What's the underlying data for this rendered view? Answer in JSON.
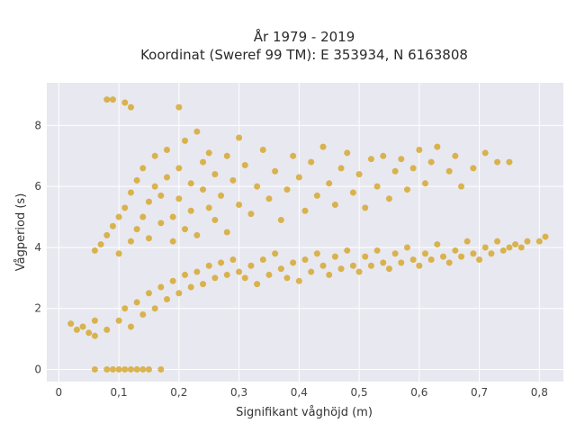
{
  "chart_data": {
    "type": "scatter",
    "title_lines": [
      "År 1979 - 2019",
      "Koordinat (Sweref 99 TM): E 353934, N 6163808"
    ],
    "xlabel": "Signifikant våghöjd (m)",
    "ylabel": "Vågperiod (s)",
    "xlim": [
      -0.02,
      0.84
    ],
    "ylim": [
      -0.4,
      9.4
    ],
    "xticks": [
      0,
      0.1,
      0.2,
      0.3,
      0.4,
      0.5,
      0.6,
      0.7,
      0.8
    ],
    "xtick_labels": [
      "0",
      "0,1",
      "0,2",
      "0,3",
      "0,4",
      "0,5",
      "0,6",
      "0,7",
      "0,8"
    ],
    "yticks": [
      0,
      2,
      4,
      6,
      8
    ],
    "ytick_labels": [
      "0",
      "2",
      "4",
      "6",
      "8"
    ],
    "grid": true,
    "legend": "none",
    "colors": {
      "marker": "#D4A017",
      "plot_background": "#E8E8F0",
      "grid": "#FFFFFF"
    },
    "series": [
      {
        "points": [
          [
            0.02,
            1.5
          ],
          [
            0.03,
            1.3
          ],
          [
            0.04,
            1.4
          ],
          [
            0.05,
            1.2
          ],
          [
            0.06,
            1.6
          ],
          [
            0.06,
            0.0
          ],
          [
            0.08,
            0.0
          ],
          [
            0.09,
            0.0
          ],
          [
            0.1,
            0.0
          ],
          [
            0.11,
            0.0
          ],
          [
            0.12,
            0.0
          ],
          [
            0.13,
            0.0
          ],
          [
            0.14,
            0.0
          ],
          [
            0.15,
            0.0
          ],
          [
            0.17,
            0.0
          ],
          [
            0.08,
            8.85
          ],
          [
            0.09,
            8.85
          ],
          [
            0.11,
            8.75
          ],
          [
            0.12,
            8.6
          ],
          [
            0.2,
            8.6
          ],
          [
            0.06,
            3.9
          ],
          [
            0.07,
            4.1
          ],
          [
            0.08,
            4.4
          ],
          [
            0.09,
            4.7
          ],
          [
            0.1,
            5.0
          ],
          [
            0.1,
            3.8
          ],
          [
            0.11,
            5.3
          ],
          [
            0.12,
            4.2
          ],
          [
            0.12,
            5.8
          ],
          [
            0.13,
            4.6
          ],
          [
            0.13,
            6.2
          ],
          [
            0.14,
            5.0
          ],
          [
            0.14,
            6.6
          ],
          [
            0.15,
            4.3
          ],
          [
            0.15,
            5.5
          ],
          [
            0.16,
            6.0
          ],
          [
            0.16,
            7.0
          ],
          [
            0.17,
            4.8
          ],
          [
            0.17,
            5.7
          ],
          [
            0.18,
            6.3
          ],
          [
            0.18,
            7.2
          ],
          [
            0.19,
            5.0
          ],
          [
            0.19,
            4.2
          ],
          [
            0.2,
            5.6
          ],
          [
            0.2,
            6.6
          ],
          [
            0.21,
            4.6
          ],
          [
            0.21,
            7.5
          ],
          [
            0.22,
            5.2
          ],
          [
            0.22,
            6.1
          ],
          [
            0.23,
            7.8
          ],
          [
            0.23,
            4.4
          ],
          [
            0.24,
            5.9
          ],
          [
            0.24,
            6.8
          ],
          [
            0.25,
            5.3
          ],
          [
            0.25,
            7.1
          ],
          [
            0.26,
            4.9
          ],
          [
            0.26,
            6.4
          ],
          [
            0.27,
            5.7
          ],
          [
            0.28,
            7.0
          ],
          [
            0.28,
            4.5
          ],
          [
            0.29,
            6.2
          ],
          [
            0.3,
            5.4
          ],
          [
            0.3,
            7.6
          ],
          [
            0.31,
            6.7
          ],
          [
            0.32,
            5.1
          ],
          [
            0.33,
            6.0
          ],
          [
            0.34,
            7.2
          ],
          [
            0.35,
            5.6
          ],
          [
            0.36,
            6.5
          ],
          [
            0.37,
            4.9
          ],
          [
            0.38,
            5.9
          ],
          [
            0.39,
            7.0
          ],
          [
            0.4,
            6.3
          ],
          [
            0.41,
            5.2
          ],
          [
            0.42,
            6.8
          ],
          [
            0.43,
            5.7
          ],
          [
            0.44,
            7.3
          ],
          [
            0.45,
            6.1
          ],
          [
            0.46,
            5.4
          ],
          [
            0.47,
            6.6
          ],
          [
            0.48,
            7.1
          ],
          [
            0.49,
            5.8
          ],
          [
            0.5,
            6.4
          ],
          [
            0.51,
            5.3
          ],
          [
            0.52,
            6.9
          ],
          [
            0.53,
            6.0
          ],
          [
            0.54,
            7.0
          ],
          [
            0.55,
            5.6
          ],
          [
            0.56,
            6.5
          ],
          [
            0.57,
            6.9
          ],
          [
            0.58,
            5.9
          ],
          [
            0.59,
            6.6
          ],
          [
            0.6,
            7.2
          ],
          [
            0.61,
            6.1
          ],
          [
            0.62,
            6.8
          ],
          [
            0.63,
            7.3
          ],
          [
            0.65,
            6.5
          ],
          [
            0.66,
            7.0
          ],
          [
            0.67,
            6.0
          ],
          [
            0.69,
            6.6
          ],
          [
            0.71,
            7.1
          ],
          [
            0.73,
            6.8
          ],
          [
            0.75,
            6.8
          ],
          [
            0.06,
            1.1
          ],
          [
            0.08,
            1.3
          ],
          [
            0.1,
            1.6
          ],
          [
            0.11,
            2.0
          ],
          [
            0.12,
            1.4
          ],
          [
            0.13,
            2.2
          ],
          [
            0.14,
            1.8
          ],
          [
            0.15,
            2.5
          ],
          [
            0.16,
            2.0
          ],
          [
            0.17,
            2.7
          ],
          [
            0.18,
            2.3
          ],
          [
            0.19,
            2.9
          ],
          [
            0.2,
            2.5
          ],
          [
            0.21,
            3.1
          ],
          [
            0.22,
            2.7
          ],
          [
            0.23,
            3.2
          ],
          [
            0.24,
            2.8
          ],
          [
            0.25,
            3.4
          ],
          [
            0.26,
            3.0
          ],
          [
            0.27,
            3.5
          ],
          [
            0.28,
            3.1
          ],
          [
            0.29,
            3.6
          ],
          [
            0.3,
            3.2
          ],
          [
            0.31,
            3.0
          ],
          [
            0.32,
            3.4
          ],
          [
            0.33,
            2.8
          ],
          [
            0.34,
            3.6
          ],
          [
            0.35,
            3.1
          ],
          [
            0.36,
            3.8
          ],
          [
            0.37,
            3.3
          ],
          [
            0.38,
            3.0
          ],
          [
            0.39,
            3.5
          ],
          [
            0.4,
            2.9
          ],
          [
            0.41,
            3.6
          ],
          [
            0.42,
            3.2
          ],
          [
            0.43,
            3.8
          ],
          [
            0.44,
            3.4
          ],
          [
            0.45,
            3.1
          ],
          [
            0.46,
            3.7
          ],
          [
            0.47,
            3.3
          ],
          [
            0.48,
            3.9
          ],
          [
            0.49,
            3.4
          ],
          [
            0.5,
            3.2
          ],
          [
            0.51,
            3.7
          ],
          [
            0.52,
            3.4
          ],
          [
            0.53,
            3.9
          ],
          [
            0.54,
            3.5
          ],
          [
            0.55,
            3.3
          ],
          [
            0.56,
            3.8
          ],
          [
            0.57,
            3.5
          ],
          [
            0.58,
            4.0
          ],
          [
            0.59,
            3.6
          ],
          [
            0.6,
            3.4
          ],
          [
            0.61,
            3.8
          ],
          [
            0.62,
            3.6
          ],
          [
            0.63,
            4.1
          ],
          [
            0.64,
            3.7
          ],
          [
            0.65,
            3.5
          ],
          [
            0.66,
            3.9
          ],
          [
            0.67,
            3.7
          ],
          [
            0.68,
            4.2
          ],
          [
            0.69,
            3.8
          ],
          [
            0.7,
            3.6
          ],
          [
            0.71,
            4.0
          ],
          [
            0.72,
            3.8
          ],
          [
            0.73,
            4.2
          ],
          [
            0.74,
            3.9
          ],
          [
            0.75,
            4.0
          ],
          [
            0.76,
            4.1
          ],
          [
            0.77,
            4.0
          ],
          [
            0.78,
            4.2
          ],
          [
            0.8,
            4.2
          ],
          [
            0.81,
            4.35
          ]
        ]
      }
    ]
  }
}
